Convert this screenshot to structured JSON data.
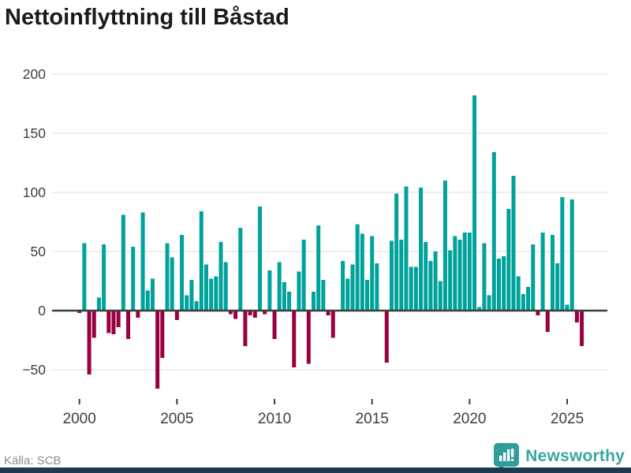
{
  "page": {
    "title": "Nettoinflyttning till Båstad",
    "source": "Källa: SCB"
  },
  "brand": {
    "name": "Newsworthy",
    "icon": "newsworthy-bar-chart-bubble-icon",
    "color": "#3ba6a2"
  },
  "colors": {
    "positive": "#00a29c",
    "negative": "#990040",
    "grid": "#e9e9e9",
    "zero_line": "#3d3d3d",
    "axis_text": "#3d3d3d",
    "title_text": "#1a1a1a",
    "source_text": "#8a8a94",
    "footer_strip": "#1d3b4f"
  },
  "chart_data": {
    "type": "bar",
    "title": "Nettoinflyttning till Båstad",
    "frequency": "quarterly",
    "start": "2000Q1",
    "end": "2025Q4",
    "grid": true,
    "legend": false,
    "ylim": [
      -70,
      206
    ],
    "y_ticks": [
      200,
      150,
      100,
      50,
      0,
      -50
    ],
    "y_tick_labels": [
      "200",
      "150",
      "100",
      "50",
      "0",
      "−50"
    ],
    "x_tick_years": [
      2000,
      2005,
      2010,
      2015,
      2020,
      2025
    ],
    "x_tick_labels": [
      "2000",
      "2005",
      "2010",
      "2015",
      "2020",
      "2025"
    ],
    "series": [
      {
        "name": "Nettoinflyttning",
        "years": [
          {
            "year": 2000,
            "values": [
              -2,
              57,
              -54,
              -23
            ]
          },
          {
            "year": 2001,
            "values": [
              11,
              56,
              -19,
              -20
            ]
          },
          {
            "year": 2002,
            "values": [
              -14,
              81,
              -24,
              54
            ]
          },
          {
            "year": 2003,
            "values": [
              -6,
              83,
              17,
              27
            ]
          },
          {
            "year": 2004,
            "values": [
              -66,
              -40,
              57,
              45
            ]
          },
          {
            "year": 2005,
            "values": [
              -8,
              64,
              13,
              26
            ]
          },
          {
            "year": 2006,
            "values": [
              8,
              84,
              39,
              27
            ]
          },
          {
            "year": 2007,
            "values": [
              29,
              58,
              41,
              -3
            ]
          },
          {
            "year": 2008,
            "values": [
              -7,
              70,
              -30,
              -4
            ]
          },
          {
            "year": 2009,
            "values": [
              -6,
              88,
              -3,
              34
            ]
          },
          {
            "year": 2010,
            "values": [
              -24,
              41,
              24,
              16
            ]
          },
          {
            "year": 2011,
            "values": [
              -48,
              33,
              60,
              -45
            ]
          },
          {
            "year": 2012,
            "values": [
              16,
              72,
              26,
              -4
            ]
          },
          {
            "year": 2013,
            "values": [
              -23,
              0,
              42,
              27
            ]
          },
          {
            "year": 2014,
            "values": [
              39,
              73,
              65,
              26
            ]
          },
          {
            "year": 2015,
            "values": [
              63,
              40,
              0,
              -44
            ]
          },
          {
            "year": 2016,
            "values": [
              59,
              99,
              60,
              105
            ]
          },
          {
            "year": 2017,
            "values": [
              37,
              37,
              104,
              58
            ]
          },
          {
            "year": 2018,
            "values": [
              42,
              50,
              25,
              110
            ]
          },
          {
            "year": 2019,
            "values": [
              51,
              63,
              60,
              66
            ]
          },
          {
            "year": 2020,
            "values": [
              66,
              182,
              3,
              57
            ]
          },
          {
            "year": 2021,
            "values": [
              13,
              134,
              44,
              46
            ]
          },
          {
            "year": 2022,
            "values": [
              86,
              114,
              29,
              14
            ]
          },
          {
            "year": 2023,
            "values": [
              20,
              56,
              -4,
              66
            ]
          },
          {
            "year": 2024,
            "values": [
              -18,
              64,
              40,
              96
            ]
          },
          {
            "year": 2025,
            "values": [
              5,
              94,
              -10,
              -30
            ]
          }
        ]
      }
    ]
  }
}
